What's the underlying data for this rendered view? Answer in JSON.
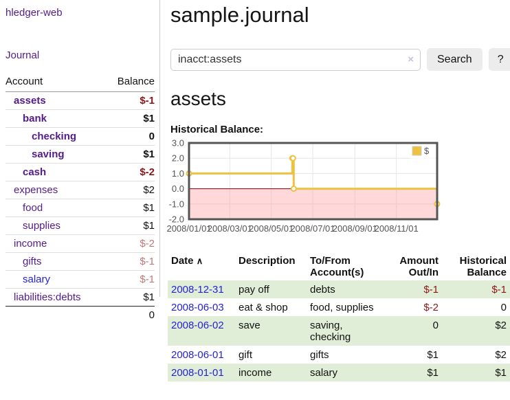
{
  "app": {
    "title": "hledger-web"
  },
  "sidebar": {
    "nav": {
      "journal": "Journal"
    },
    "accounts_table": {
      "headers": [
        "Account",
        "Balance"
      ],
      "rows": [
        {
          "name": "assets",
          "balance": "$-1",
          "depth": 1,
          "in_account": true,
          "link_state": "visited"
        },
        {
          "name": "bank",
          "balance": "$1",
          "depth": 2,
          "in_account": true,
          "link_state": "visited"
        },
        {
          "name": "checking",
          "balance": "0",
          "depth": 3,
          "in_account": true,
          "link_state": "visited"
        },
        {
          "name": "saving",
          "balance": "$1",
          "depth": 3,
          "in_account": true,
          "link_state": "visited"
        },
        {
          "name": "cash",
          "balance": "$-2",
          "depth": 2,
          "in_account": true,
          "link_state": "visited"
        },
        {
          "name": "expenses",
          "balance": "$2",
          "depth": 1,
          "in_account": false,
          "link_state": "visited"
        },
        {
          "name": "food",
          "balance": "$1",
          "depth": 2,
          "in_account": false,
          "link_state": "visited"
        },
        {
          "name": "supplies",
          "balance": "$1",
          "depth": 2,
          "in_account": false,
          "link_state": "visited"
        },
        {
          "name": "income",
          "balance": "$-2",
          "depth": 1,
          "in_account": false,
          "link_state": "visited"
        },
        {
          "name": "gifts",
          "balance": "$-1",
          "depth": 2,
          "in_account": false,
          "link_state": "visited"
        },
        {
          "name": "salary",
          "balance": "$-1",
          "depth": 2,
          "in_account": false,
          "link_state": "unvisited"
        },
        {
          "name": "liabilities:debts",
          "balance": "$1",
          "depth": 1,
          "in_account": false,
          "link_state": "visited"
        }
      ],
      "total": "0"
    }
  },
  "main": {
    "title": "sample.journal",
    "search": {
      "query": "inacct:assets",
      "clear_icon": "×",
      "search_button": "Search",
      "help_button": "?"
    },
    "account_heading": "assets",
    "chart_heading": "Historical Balance:"
  },
  "chart_data": {
    "type": "line",
    "step": true,
    "title": "Historical Balance:",
    "series": [
      {
        "name": "$",
        "color": "#edc240",
        "points": [
          [
            "2008-01-01",
            1
          ],
          [
            "2008-06-01",
            2
          ],
          [
            "2008-06-02",
            2
          ],
          [
            "2008-06-03",
            0
          ],
          [
            "2008-12-31",
            -1
          ]
        ]
      }
    ],
    "xlim": [
      "2008-01-01",
      "2008-12-31"
    ],
    "ylim": [
      -2,
      3
    ],
    "ytick_values": [
      3,
      2,
      1,
      0,
      -1,
      -2
    ],
    "ytick_labels": [
      "3.0",
      "2.0",
      "1.0",
      "0.0",
      "-1.0",
      "-2.0"
    ],
    "xtick_labels": [
      "2008/01/01",
      "2008/03/01",
      "2008/05/01",
      "2008/07/01",
      "2008/09/01",
      "2008/11/01"
    ],
    "grid": true,
    "legend": [
      "$"
    ],
    "legend_position": "top-right",
    "negative_region_color": "#ffdada",
    "zero_line_color": "#7d0000",
    "border_color": "#545454",
    "tick_text_color": "#545454"
  },
  "register": {
    "headers": [
      {
        "label": "Date",
        "sort_icon": "∧"
      },
      {
        "label": "Description"
      },
      {
        "label": "To/From Account(s)"
      },
      {
        "label": "Amount Out/In"
      },
      {
        "label": "Historical Balance"
      }
    ],
    "rows": [
      {
        "date": "2008-12-31",
        "description": "pay off",
        "accounts": "debts",
        "amount": "$-1",
        "balance": "$-1"
      },
      {
        "date": "2008-06-03",
        "description": "eat & shop",
        "accounts": "food, supplies",
        "amount": "$-2",
        "balance": "0"
      },
      {
        "date": "2008-06-02",
        "description": "save",
        "accounts": "saving, checking",
        "amount": "0",
        "balance": "$2"
      },
      {
        "date": "2008-06-01",
        "description": "gift",
        "accounts": "gifts",
        "amount": "$1",
        "balance": "$2"
      },
      {
        "date": "2008-01-01",
        "description": "income",
        "accounts": "salary",
        "amount": "$1",
        "balance": "$1"
      }
    ]
  }
}
